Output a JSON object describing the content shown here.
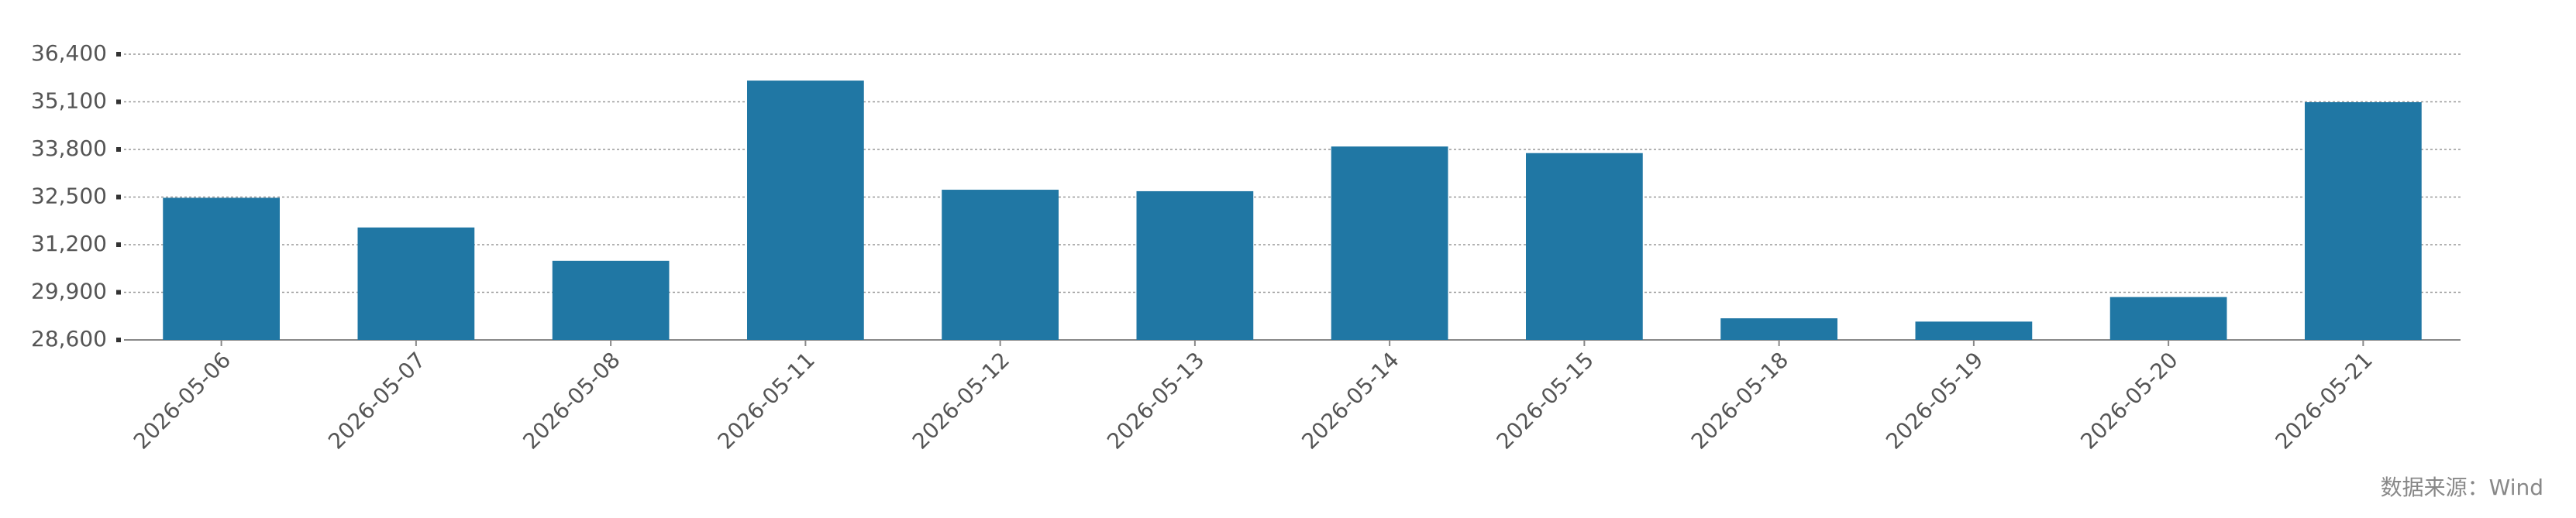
{
  "chart_data": {
    "type": "bar",
    "categories": [
      "2026-05-06",
      "2026-05-07",
      "2026-05-08",
      "2026-05-11",
      "2026-05-12",
      "2026-05-13",
      "2026-05-14",
      "2026-05-15",
      "2026-05-18",
      "2026-05-19",
      "2026-05-20",
      "2026-05-21"
    ],
    "values": [
      32480,
      31670,
      30760,
      35680,
      32700,
      32660,
      33880,
      33700,
      29190,
      29100,
      29770,
      35090
    ],
    "color": "#2077a4",
    "ylim": [
      28600,
      36400
    ],
    "yticks": [
      {
        "value": 28600,
        "label": "28,600"
      },
      {
        "value": 29900,
        "label": "29,900"
      },
      {
        "value": 31200,
        "label": "31,200"
      },
      {
        "value": 32500,
        "label": "32,500"
      },
      {
        "value": 33800,
        "label": "33,800"
      },
      {
        "value": 35100,
        "label": "35,100"
      },
      {
        "value": 36400,
        "label": "36,400"
      }
    ],
    "grid": true,
    "source": "数据来源：Wind"
  }
}
